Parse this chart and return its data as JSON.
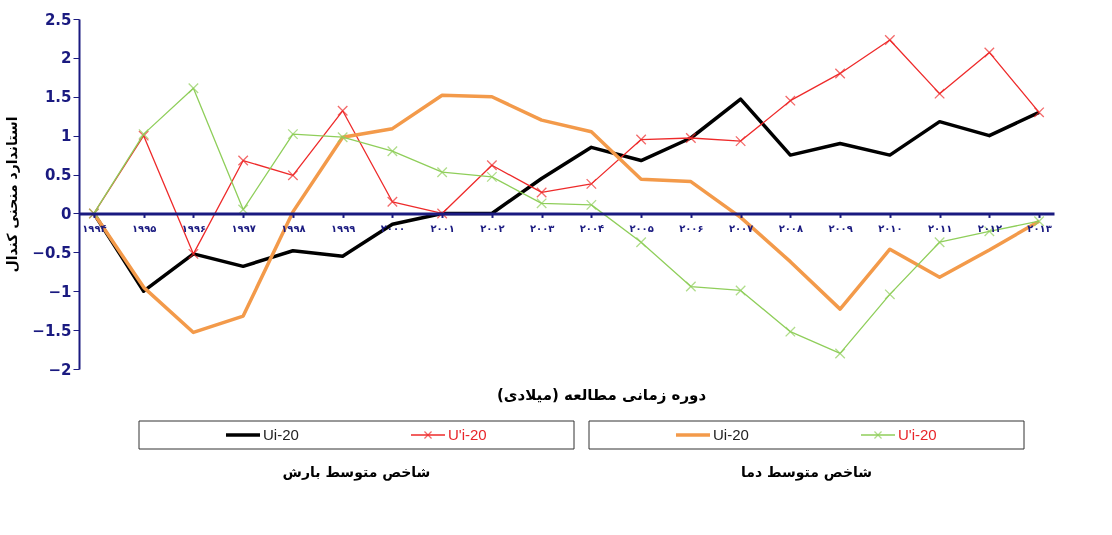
{
  "chart_data": {
    "type": "line",
    "xlabel": "دوره زمانی مطالعه (میلادی)",
    "ylabel": "استاندارد منحنی کندال",
    "categories": [
      "۱۹۹۴",
      "۱۹۹۵",
      "۱۹۹۶",
      "۱۹۹۷",
      "۱۹۹۸",
      "۱۹۹۹",
      "۲۰۰۰",
      "۲۰۰۱",
      "۲۰۰۲",
      "۲۰۰۳",
      "۲۰۰۴",
      "۲۰۰۵",
      "۲۰۰۶",
      "۲۰۰۷",
      "۲۰۰۸",
      "۲۰۰۹",
      "۲۰۱۰",
      "۲۰۱۱",
      "۲۰۱۲",
      "۲۰۱۳"
    ],
    "series": [
      {
        "name": "Ui-20",
        "color": "#000000",
        "marker": "none",
        "values": [
          0,
          -1.0,
          -0.52,
          -0.68,
          -0.48,
          -0.55,
          -0.14,
          0,
          0,
          0.45,
          0.85,
          0.68,
          0.97,
          1.47,
          0.75,
          0.9,
          0.75,
          1.18,
          1.0,
          1.3
        ]
      },
      {
        "name": "U'i-20",
        "color": "#ee2a2a",
        "marker": "cross",
        "values": [
          0,
          1.0,
          -0.52,
          0.68,
          0.49,
          1.32,
          0.15,
          0,
          0.62,
          0.27,
          0.38,
          0.95,
          0.97,
          0.93,
          1.45,
          1.8,
          2.23,
          1.54,
          2.07,
          1.3
        ]
      },
      {
        "name": "Ui-20",
        "color": "#f39a4a",
        "marker": "none",
        "values": [
          0,
          -0.95,
          -1.53,
          -1.32,
          0.02,
          0.98,
          1.09,
          1.52,
          1.5,
          1.2,
          1.05,
          0.44,
          0.41,
          -0.05,
          -0.62,
          -1.23,
          -0.46,
          -0.82,
          -0.47,
          -0.1
        ]
      },
      {
        "name": "U'i-20",
        "color": "#8fce5a",
        "marker": "cross",
        "values": [
          0,
          1.02,
          1.61,
          0.05,
          1.02,
          0.98,
          0.8,
          0.53,
          0.47,
          0.13,
          0.11,
          -0.37,
          -0.94,
          -0.99,
          -1.52,
          -1.8,
          -1.04,
          -0.37,
          -0.23,
          -0.1
        ]
      }
    ],
    "ylim": [
      -2,
      2.5
    ],
    "yticks": [
      -2,
      -1.5,
      -1,
      -0.5,
      0,
      0.5,
      1,
      1.5,
      2,
      2.5
    ],
    "grid": false,
    "legend": "bottom",
    "annotations": [
      "شاخص متوسط بارش",
      "شاخص متوسط دما"
    ]
  }
}
